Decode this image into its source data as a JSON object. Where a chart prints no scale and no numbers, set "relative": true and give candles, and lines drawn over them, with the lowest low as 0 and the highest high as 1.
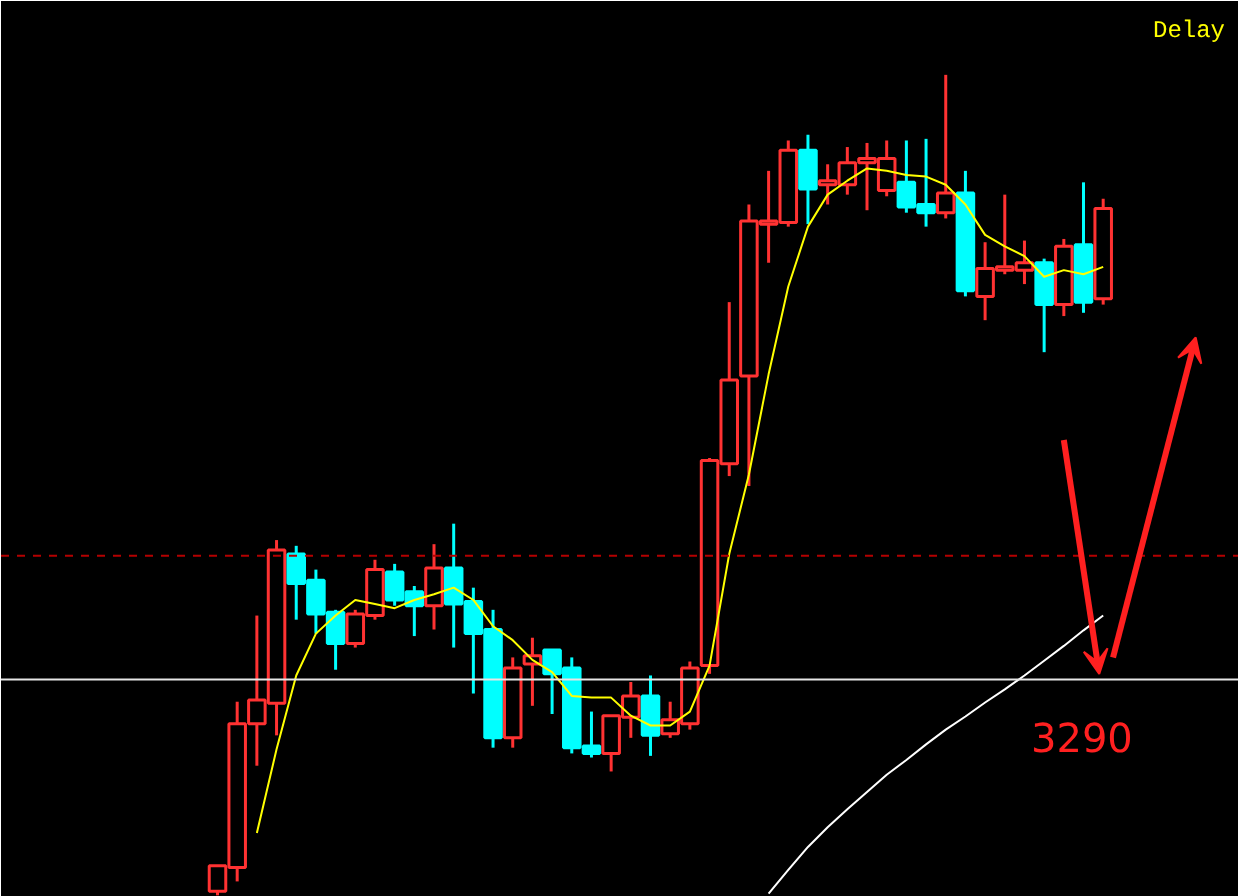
{
  "chart_data": {
    "type": "candlestick",
    "relative": true,
    "grid": false,
    "annotations": [
      "Delay",
      "3290"
    ],
    "categories": [
      null,
      null,
      null,
      null,
      null,
      null,
      null,
      null,
      null,
      null,
      null,
      null,
      null,
      null,
      null,
      null,
      null,
      null,
      null,
      null,
      null,
      null,
      null,
      null,
      null,
      null,
      null,
      null,
      null,
      null,
      null,
      null,
      null,
      null,
      null,
      null,
      null,
      null,
      null,
      null,
      null,
      null,
      null,
      null,
      null,
      null
    ],
    "ohlc": [
      [
        0.005,
        0.036,
        0,
        0.036
      ],
      [
        0.034,
        0.236,
        0.017,
        0.209
      ],
      [
        0.209,
        0.341,
        0.158,
        0.238
      ],
      [
        0.234,
        0.433,
        0.195,
        0.421
      ],
      [
        0.416,
        0.426,
        0.336,
        0.38
      ],
      [
        0.384,
        0.397,
        0.319,
        0.343
      ],
      [
        0.345,
        0.348,
        0.275,
        0.307
      ],
      [
        0.307,
        0.348,
        0.302,
        0.343
      ],
      [
        0.341,
        0.409,
        0.336,
        0.397
      ],
      [
        0.394,
        0.404,
        0.353,
        0.36
      ],
      [
        0.37,
        0.377,
        0.316,
        0.353
      ],
      [
        0.353,
        0.428,
        0.324,
        0.399
      ],
      [
        0.399,
        0.453,
        0.302,
        0.355
      ],
      [
        0.358,
        0.375,
        0.246,
        0.319
      ],
      [
        0.324,
        0.348,
        0.18,
        0.192
      ],
      [
        0.192,
        0.29,
        0.18,
        0.277
      ],
      [
        0.282,
        0.314,
        0.231,
        0.292
      ],
      [
        0.299,
        0.299,
        0.221,
        0.27
      ],
      [
        0.277,
        0.29,
        0.173,
        0.18
      ],
      [
        0.182,
        0.224,
        0.168,
        0.173
      ],
      [
        0.173,
        0.219,
        0.151,
        0.219
      ],
      [
        0.217,
        0.26,
        0.192,
        0.243
      ],
      [
        0.243,
        0.268,
        0.17,
        0.195
      ],
      [
        0.197,
        0.236,
        0.192,
        0.214
      ],
      [
        0.209,
        0.285,
        0.202,
        0.277
      ],
      [
        0.28,
        0.533,
        0.27,
        0.53
      ],
      [
        0.526,
        0.723,
        0.511,
        0.628
      ],
      [
        0.633,
        0.842,
        0.499,
        0.822
      ],
      [
        0.818,
        0.883,
        0.771,
        0.822
      ],
      [
        0.82,
        0.92,
        0.815,
        0.908
      ],
      [
        0.908,
        0.927,
        0.818,
        0.861
      ],
      [
        0.866,
        0.891,
        0.842,
        0.871
      ],
      [
        0.866,
        0.912,
        0.854,
        0.893
      ],
      [
        0.893,
        0.917,
        0.835,
        0.898
      ],
      [
        0.859,
        0.92,
        0.852,
        0.898
      ],
      [
        0.869,
        0.92,
        0.832,
        0.839
      ],
      [
        0.842,
        0.922,
        0.815,
        0.832
      ],
      [
        0.832,
        1,
        0.825,
        0.856
      ],
      [
        0.856,
        0.883,
        0.73,
        0.737
      ],
      [
        0.73,
        0.796,
        0.701,
        0.764
      ],
      [
        0.762,
        0.854,
        0.757,
        0.766
      ],
      [
        0.762,
        0.798,
        0.745,
        0.771
      ],
      [
        0.771,
        0.776,
        0.662,
        0.72
      ],
      [
        0.72,
        0.8,
        0.706,
        0.791
      ],
      [
        0.793,
        0.869,
        0.71,
        0.723
      ],
      [
        0.727,
        0.849,
        0.72,
        0.837
      ]
    ],
    "colors": [
      "#ff3232",
      "#ff3232",
      "#ff3232",
      "#ff3232",
      "#00ffff",
      "#00ffff",
      "#00ffff",
      "#ff3232",
      "#ff3232",
      "#00ffff",
      "#00ffff",
      "#ff3232",
      "#00ffff",
      "#00ffff",
      "#00ffff",
      "#ff3232",
      "#ff3232",
      "#00ffff",
      "#00ffff",
      "#00ffff",
      "#ff3232",
      "#ff3232",
      "#00ffff",
      "#ff3232",
      "#ff3232",
      "#ff3232",
      "#ff3232",
      "#ff3232",
      "#ff3232",
      "#ff3232",
      "#00ffff",
      "#ff3232",
      "#ff3232",
      "#ff3232",
      "#ff3232",
      "#00ffff",
      "#00ffff",
      "#ff3232",
      "#00ffff",
      "#ff3232",
      "#ff3232",
      "#ff3232",
      "#00ffff",
      "#ff3232",
      "#00ffff",
      "#ff3232"
    ],
    "series": [
      {
        "type": "line",
        "color": "#ffff00",
        "values": [
          null,
          null,
          0.076,
          0.178,
          0.268,
          0.319,
          0.341,
          0.36,
          0.355,
          0.35,
          0.36,
          0.367,
          0.375,
          0.36,
          0.328,
          0.311,
          0.287,
          0.272,
          0.243,
          0.241,
          0.241,
          0.219,
          0.207,
          0.207,
          0.224,
          0.28,
          0.416,
          0.513,
          0.635,
          0.742,
          0.815,
          0.854,
          0.871,
          0.886,
          0.883,
          0.878,
          0.876,
          0.866,
          0.842,
          0.805,
          0.791,
          0.779,
          0.754,
          0.762,
          0.757,
          0.766
        ]
      },
      {
        "type": "line",
        "color": "#ffffff",
        "values": [
          null,
          null,
          null,
          null,
          null,
          null,
          null,
          null,
          null,
          null,
          null,
          null,
          null,
          null,
          null,
          null,
          null,
          null,
          null,
          null,
          null,
          null,
          null,
          null,
          null,
          null,
          null,
          null,
          0.002,
          0.031,
          0.059,
          0.083,
          0.105,
          0.126,
          0.147,
          0.165,
          0.184,
          0.202,
          0.218,
          0.235,
          0.251,
          0.268,
          0.286,
          0.304,
          0.323,
          0.341
        ]
      }
    ],
    "ref_lines": [
      {
        "axis": "y",
        "value": 0.263,
        "color": "#e6e6e6",
        "line_style": "solid"
      },
      {
        "axis": "y",
        "value": 0.414,
        "color": "#b40000",
        "line_style": "dashed"
      }
    ]
  }
}
